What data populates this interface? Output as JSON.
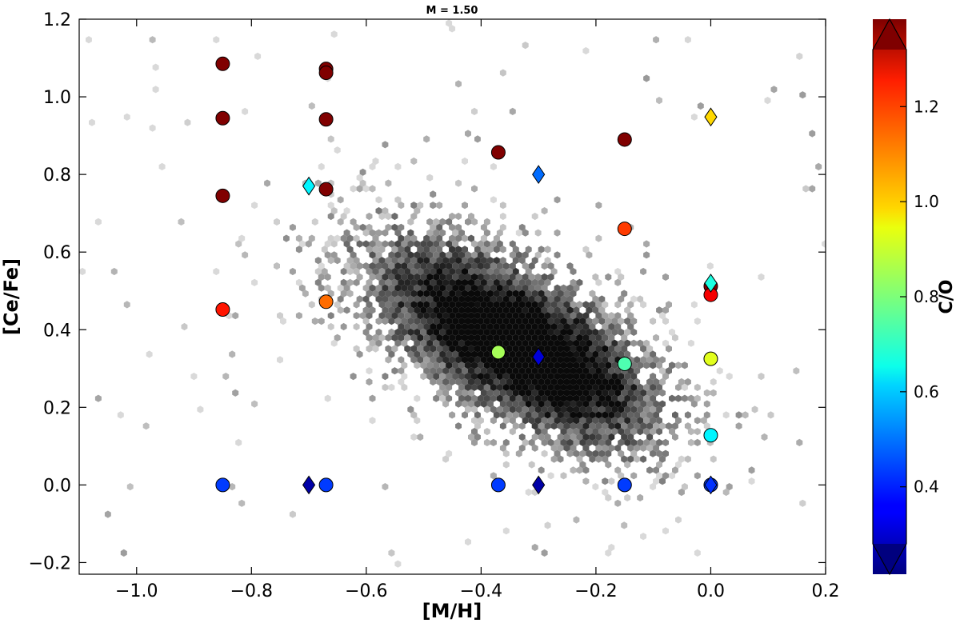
{
  "chart_data": {
    "type": "scatter",
    "title": "M = 1.50",
    "xlabel": "[M/H]",
    "ylabel": "[Ce/Fe]",
    "xlim": [
      -1.1,
      0.2
    ],
    "ylim": [
      -0.23,
      1.2
    ],
    "xticks": [
      "−1.0",
      "−0.8",
      "−0.6",
      "−0.4",
      "−0.2",
      "0.0",
      "0.2"
    ],
    "xtick_values": [
      -1.0,
      -0.8,
      -0.6,
      -0.4,
      -0.2,
      0.0,
      0.2
    ],
    "yticks": [
      "−0.2",
      "0.0",
      "0.2",
      "0.4",
      "0.6",
      "0.8",
      "1.0",
      "1.2"
    ],
    "ytick_values": [
      -0.2,
      0.0,
      0.2,
      0.4,
      0.6,
      0.8,
      1.0,
      1.2
    ],
    "grid": false,
    "background_density": "grey hexbin of observed stars, densest around [M/H] -0.45 to -0.2, [Ce/Fe] 0.2 to 0.5",
    "colorbar": {
      "label": "C/O",
      "colormap": "jet",
      "range": [
        0.28,
        1.32
      ],
      "ticks": [
        "0.4",
        "0.6",
        "0.8",
        "1.0",
        "1.2"
      ],
      "tick_values": [
        0.4,
        0.6,
        0.8,
        1.0,
        1.2
      ],
      "extend": "both"
    },
    "series": [
      {
        "marker": "circle",
        "points": [
          {
            "x": -0.85,
            "y": 1.085,
            "c": 1.32
          },
          {
            "x": -0.85,
            "y": 0.945,
            "c": 1.32
          },
          {
            "x": -0.85,
            "y": 0.745,
            "c": 1.32
          },
          {
            "x": -0.85,
            "y": 0.452,
            "c": 1.17
          },
          {
            "x": -0.85,
            "y": 0.0,
            "c": 0.47
          },
          {
            "x": -0.67,
            "y": 1.072,
            "c": 1.32
          },
          {
            "x": -0.67,
            "y": 1.062,
            "c": 1.32
          },
          {
            "x": -0.67,
            "y": 0.942,
            "c": 1.32
          },
          {
            "x": -0.67,
            "y": 0.762,
            "c": 1.32
          },
          {
            "x": -0.67,
            "y": 0.472,
            "c": 1.08
          },
          {
            "x": -0.67,
            "y": 0.0,
            "c": 0.47
          },
          {
            "x": -0.37,
            "y": 0.857,
            "c": 1.32
          },
          {
            "x": -0.37,
            "y": 0.342,
            "c": 0.84
          },
          {
            "x": -0.37,
            "y": 0.0,
            "c": 0.47
          },
          {
            "x": -0.15,
            "y": 0.89,
            "c": 1.32
          },
          {
            "x": -0.15,
            "y": 0.66,
            "c": 1.13
          },
          {
            "x": -0.15,
            "y": 0.312,
            "c": 0.75
          },
          {
            "x": -0.15,
            "y": 0.0,
            "c": 0.47
          },
          {
            "x": 0.0,
            "y": 0.512,
            "c": 1.32
          },
          {
            "x": 0.0,
            "y": 0.49,
            "c": 1.2
          },
          {
            "x": 0.0,
            "y": 0.325,
            "c": 0.9
          },
          {
            "x": 0.0,
            "y": 0.128,
            "c": 0.66
          },
          {
            "x": 0.0,
            "y": 0.0,
            "c": 0.47
          }
        ]
      },
      {
        "marker": "diamond",
        "points": [
          {
            "x": -0.7,
            "y": 0.77,
            "c": 0.66
          },
          {
            "x": -0.7,
            "y": 0.0,
            "c": 0.32
          },
          {
            "x": -0.3,
            "y": 0.8,
            "c": 0.52
          },
          {
            "x": -0.3,
            "y": 0.33,
            "c": 0.37
          },
          {
            "x": -0.3,
            "y": 0.0,
            "c": 0.32
          },
          {
            "x": 0.0,
            "y": 0.948,
            "c": 0.97
          },
          {
            "x": 0.0,
            "y": 0.52,
            "c": 0.7
          },
          {
            "x": 0.0,
            "y": 0.0,
            "c": 0.46
          }
        ]
      }
    ]
  }
}
